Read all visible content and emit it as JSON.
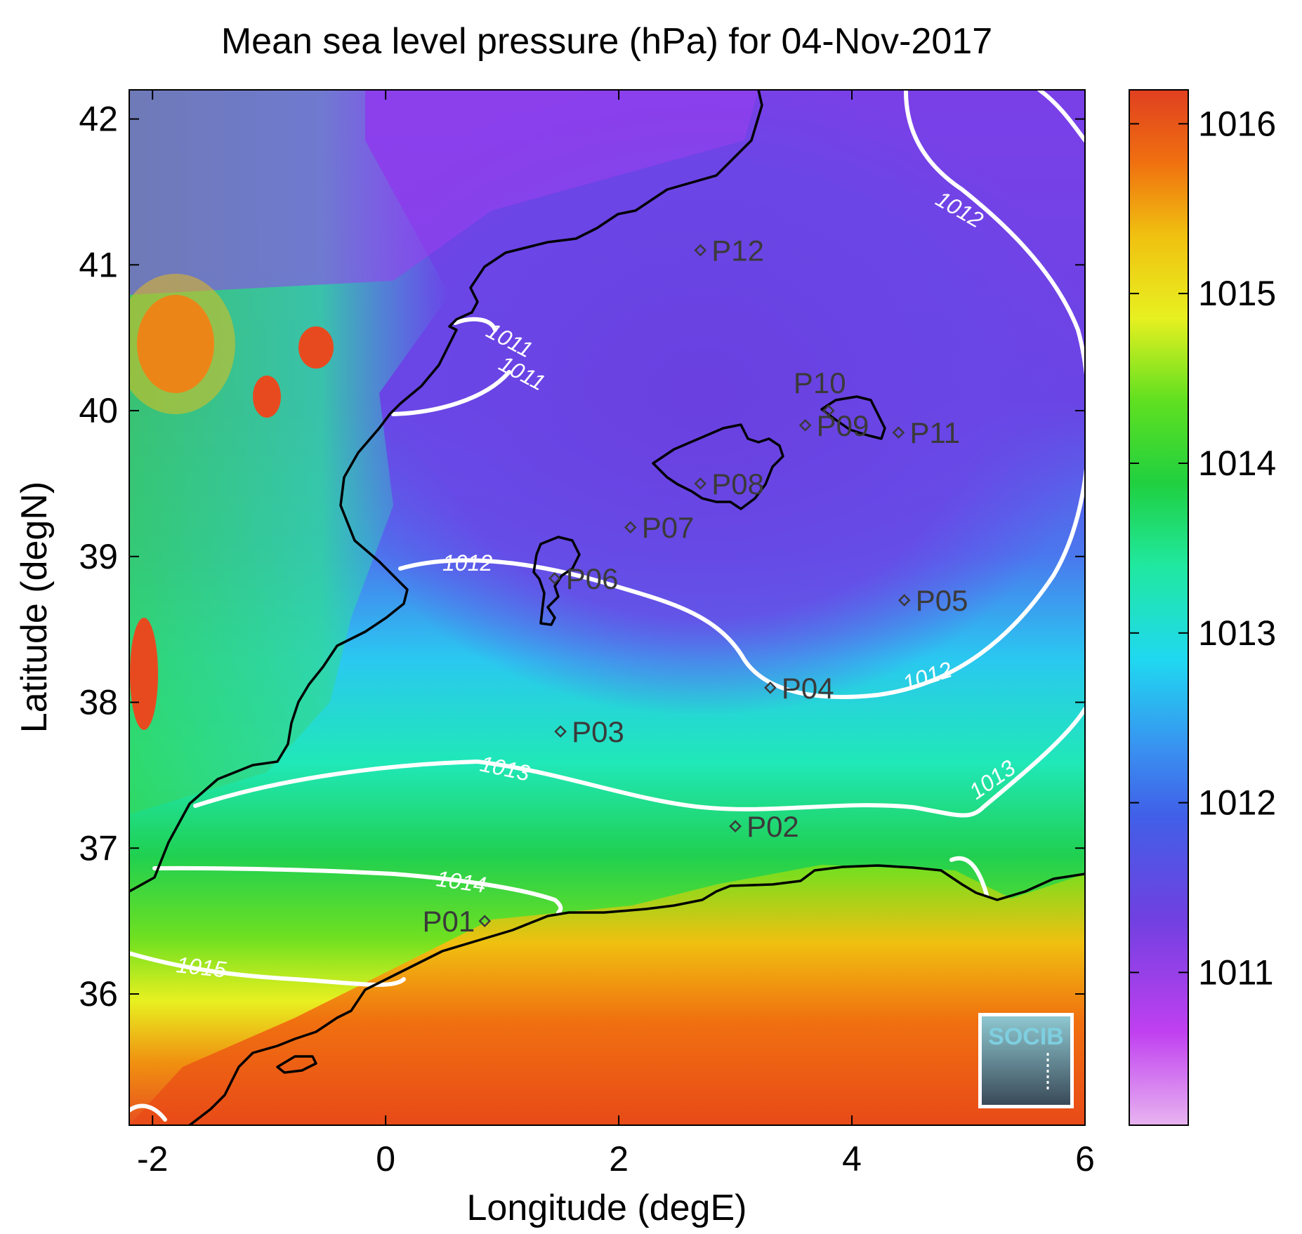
{
  "title": "Mean sea level pressure (hPa) for 04-Nov-2017",
  "xlabel": "Longitude (degE)",
  "ylabel": "Latitude (degN)",
  "x_ticks": [
    "-2",
    "0",
    "2",
    "4",
    "6"
  ],
  "y_ticks": [
    "42",
    "41",
    "40",
    "39",
    "38",
    "37",
    "36"
  ],
  "colorbar_ticks": [
    "1016",
    "1015",
    "1014",
    "1013",
    "1012",
    "1011"
  ],
  "contour_labels": [
    "1011",
    "1011",
    "1012",
    "1012",
    "1012",
    "1013",
    "1013",
    "1014",
    "1015"
  ],
  "stations": [
    {
      "id": "P01",
      "lon": 0.85,
      "lat": 36.5
    },
    {
      "id": "P02",
      "lon": 3.0,
      "lat": 37.15
    },
    {
      "id": "P03",
      "lon": 1.5,
      "lat": 37.8
    },
    {
      "id": "P04",
      "lon": 3.3,
      "lat": 38.1
    },
    {
      "id": "P05",
      "lon": 4.45,
      "lat": 38.7
    },
    {
      "id": "P06",
      "lon": 1.45,
      "lat": 38.85
    },
    {
      "id": "P07",
      "lon": 2.1,
      "lat": 39.2
    },
    {
      "id": "P08",
      "lon": 2.7,
      "lat": 39.5
    },
    {
      "id": "P09",
      "lon": 3.6,
      "lat": 39.9
    },
    {
      "id": "P10",
      "lon": 3.8,
      "lat": 40.0
    },
    {
      "id": "P11",
      "lon": 4.4,
      "lat": 39.85
    },
    {
      "id": "P12",
      "lon": 2.7,
      "lat": 41.1
    }
  ],
  "logo_text": "SOCIB",
  "colorbar_range": [
    1010.1,
    1016.2
  ],
  "colormap": [
    "#e8a0f0",
    "#b040f0",
    "#6040e0",
    "#3a7ef0",
    "#20d8f0",
    "#20d870",
    "#40d020",
    "#e8f020",
    "#f0c010",
    "#f07010",
    "#e04020"
  ]
}
